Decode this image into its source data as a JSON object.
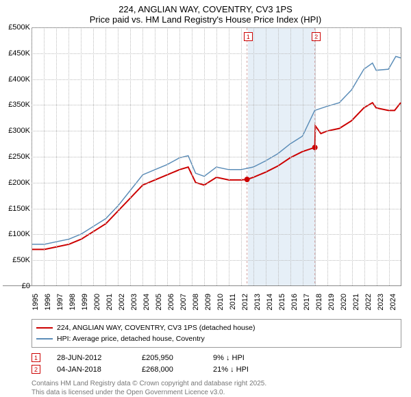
{
  "title_line1": "224, ANGLIAN WAY, COVENTRY, CV3 1PS",
  "title_line2": "Price paid vs. HM Land Registry's House Price Index (HPI)",
  "y_axis": {
    "min": 0,
    "max": 500000,
    "step": 50000,
    "labels": [
      "£0",
      "£50K",
      "£100K",
      "£150K",
      "£200K",
      "£250K",
      "£300K",
      "£350K",
      "£400K",
      "£450K",
      "£500K"
    ]
  },
  "x_axis": {
    "start": 1995,
    "end": 2025,
    "labels": [
      "1995",
      "1996",
      "1997",
      "1998",
      "1999",
      "2000",
      "2001",
      "2002",
      "2003",
      "2004",
      "2005",
      "2006",
      "2007",
      "2008",
      "2009",
      "2010",
      "2011",
      "2012",
      "2013",
      "2014",
      "2015",
      "2016",
      "2017",
      "2018",
      "2019",
      "2020",
      "2021",
      "2022",
      "2023",
      "2024"
    ]
  },
  "shaded_region": {
    "start": 2012.49,
    "end": 2018.01
  },
  "series": [
    {
      "name": "224, ANGLIAN WAY, COVENTRY, CV3 1PS (detached house)",
      "color": "#cc0000",
      "width": 2,
      "points": [
        [
          1995,
          70000
        ],
        [
          1996,
          70000
        ],
        [
          1997,
          75000
        ],
        [
          1998,
          80000
        ],
        [
          1999,
          90000
        ],
        [
          2000,
          105000
        ],
        [
          2001,
          120000
        ],
        [
          2002,
          145000
        ],
        [
          2003,
          170000
        ],
        [
          2004,
          195000
        ],
        [
          2005,
          205000
        ],
        [
          2006,
          215000
        ],
        [
          2007,
          225000
        ],
        [
          2007.7,
          230000
        ],
        [
          2008.3,
          200000
        ],
        [
          2009,
          195000
        ],
        [
          2010,
          210000
        ],
        [
          2011,
          205000
        ],
        [
          2012,
          205000
        ],
        [
          2012.49,
          205950
        ],
        [
          2013,
          210000
        ],
        [
          2014,
          220000
        ],
        [
          2015,
          232000
        ],
        [
          2016,
          248000
        ],
        [
          2017,
          260000
        ],
        [
          2018.01,
          268000
        ],
        [
          2018.05,
          310000
        ],
        [
          2018.5,
          295000
        ],
        [
          2019,
          300000
        ],
        [
          2020,
          305000
        ],
        [
          2021,
          320000
        ],
        [
          2022,
          345000
        ],
        [
          2022.7,
          355000
        ],
        [
          2023,
          345000
        ],
        [
          2024,
          340000
        ],
        [
          2024.5,
          340000
        ],
        [
          2025,
          355000
        ]
      ],
      "sale_dots": [
        [
          2012.49,
          205950
        ],
        [
          2018.01,
          268000
        ]
      ]
    },
    {
      "name": "HPI: Average price, detached house, Coventry",
      "color": "#5b8db8",
      "width": 1.5,
      "points": [
        [
          1995,
          80000
        ],
        [
          1996,
          80000
        ],
        [
          1997,
          85000
        ],
        [
          1998,
          90000
        ],
        [
          1999,
          100000
        ],
        [
          2000,
          115000
        ],
        [
          2001,
          130000
        ],
        [
          2002,
          155000
        ],
        [
          2003,
          185000
        ],
        [
          2004,
          215000
        ],
        [
          2005,
          225000
        ],
        [
          2006,
          235000
        ],
        [
          2007,
          248000
        ],
        [
          2007.7,
          252000
        ],
        [
          2008.3,
          218000
        ],
        [
          2009,
          212000
        ],
        [
          2010,
          230000
        ],
        [
          2011,
          225000
        ],
        [
          2012,
          225000
        ],
        [
          2013,
          230000
        ],
        [
          2014,
          242000
        ],
        [
          2015,
          256000
        ],
        [
          2016,
          275000
        ],
        [
          2017,
          290000
        ],
        [
          2018,
          340000
        ],
        [
          2019,
          348000
        ],
        [
          2020,
          355000
        ],
        [
          2021,
          380000
        ],
        [
          2022,
          420000
        ],
        [
          2022.7,
          432000
        ],
        [
          2023,
          418000
        ],
        [
          2024,
          420000
        ],
        [
          2024.6,
          445000
        ],
        [
          2025,
          442000
        ]
      ]
    }
  ],
  "markers": [
    {
      "n": "1",
      "year": 2012.49,
      "color": "#cc0000"
    },
    {
      "n": "2",
      "year": 2018.01,
      "color": "#cc0000"
    }
  ],
  "legend": {
    "series": [
      {
        "label": "224, ANGLIAN WAY, COVENTRY, CV3 1PS (detached house)",
        "color": "#cc0000",
        "w": 2
      },
      {
        "label": "HPI: Average price, detached house, Coventry",
        "color": "#5b8db8",
        "w": 1.5
      }
    ]
  },
  "sales": [
    {
      "n": "1",
      "date": "28-JUN-2012",
      "price": "£205,950",
      "diff": "9% ↓ HPI",
      "color": "#cc0000"
    },
    {
      "n": "2",
      "date": "04-JAN-2018",
      "price": "£268,000",
      "diff": "21% ↓ HPI",
      "color": "#cc0000"
    }
  ],
  "footer1": "Contains HM Land Registry data © Crown copyright and database right 2025.",
  "footer2": "This data is licensed under the Open Government Licence v3.0.",
  "colors": {
    "grid": "#bbbbbb",
    "axis": "#888888",
    "shaded": "#dbe8f4"
  }
}
